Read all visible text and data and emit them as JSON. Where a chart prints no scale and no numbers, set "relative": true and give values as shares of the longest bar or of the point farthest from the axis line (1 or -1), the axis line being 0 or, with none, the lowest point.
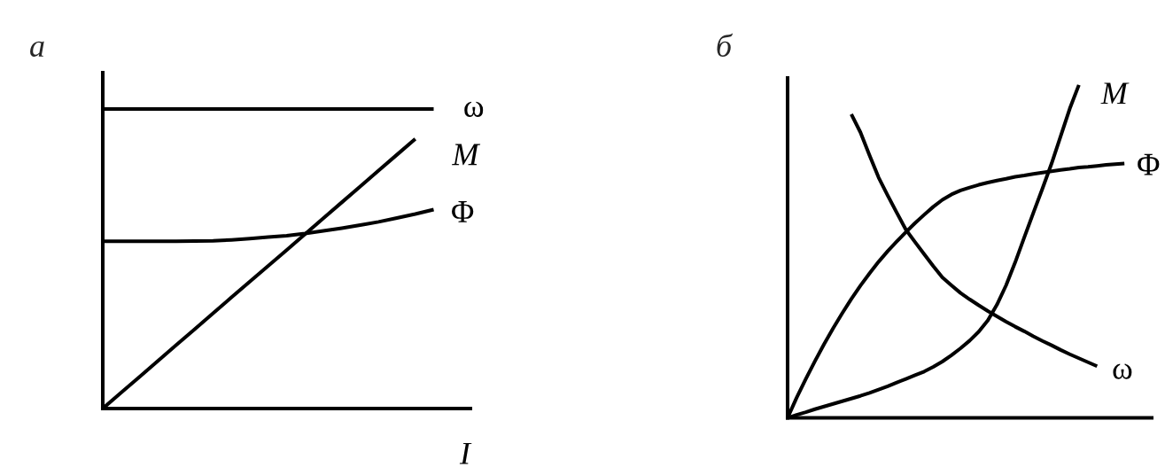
{
  "chart_data": [
    {
      "type": "line",
      "title": "а",
      "xlabel": "I",
      "relative": true,
      "categories": [
        null,
        null,
        null,
        null,
        null,
        null,
        null,
        null,
        null,
        null,
        null,
        null,
        null,
        null,
        null,
        null,
        null,
        null,
        null,
        null,
        null
      ],
      "series": [
        {
          "name": "ω",
          "color": "#000000",
          "values": [
            1,
            1,
            1,
            1,
            1,
            1,
            1,
            1,
            1,
            1,
            1,
            1,
            1,
            1,
            1,
            1,
            1,
            1,
            1,
            null,
            null
          ]
        },
        {
          "name": "M",
          "color": "#000000",
          "values": [
            0,
            0.053,
            0.106,
            0.159,
            0.212,
            0.265,
            0.318,
            0.371,
            0.424,
            0.476,
            0.529,
            0.582,
            0.635,
            0.688,
            0.741,
            0.794,
            0.847,
            0.9,
            null,
            null,
            null
          ]
        },
        {
          "name": "Φ",
          "color": "#000000",
          "values": [
            0.558,
            0.558,
            0.558,
            0.558,
            0.558,
            0.559,
            0.56,
            0.563,
            0.567,
            0.572,
            0.577,
            0.584,
            0.593,
            0.602,
            0.612,
            0.623,
            0.636,
            0.649,
            0.664,
            null,
            null
          ]
        }
      ]
    },
    {
      "type": "line",
      "title": "б",
      "relative": true,
      "categories": [
        null,
        null,
        null,
        null,
        null,
        null,
        null,
        null,
        null,
        null,
        null,
        null,
        null,
        null,
        null,
        null,
        null,
        null,
        null,
        null,
        null,
        null,
        null,
        null,
        null,
        null,
        null,
        null,
        null,
        null,
        null,
        null,
        null,
        null,
        null,
        null,
        null,
        null,
        null,
        null,
        null
      ],
      "series": [
        {
          "name": "ω",
          "color": "#000000",
          "values": [
            null,
            null,
            null,
            null,
            null,
            null,
            null,
            0.912,
            0.858,
            0.789,
            0.722,
            0.668,
            0.616,
            0.565,
            0.528,
            0.492,
            0.456,
            0.422,
            0.398,
            0.375,
            0.356,
            0.338,
            0.321,
            0.305,
            0.289,
            0.274,
            0.26,
            0.245,
            0.231,
            0.218,
            0.204,
            0.191,
            0.179,
            0.167,
            0.155,
            null,
            null,
            null,
            null,
            null,
            null
          ]
        },
        {
          "name": "M",
          "color": "#000000",
          "values": [
            0,
            0.009,
            0.017,
            0.026,
            0.034,
            0.042,
            0.05,
            0.058,
            0.066,
            0.075,
            0.085,
            0.095,
            0.106,
            0.117,
            0.128,
            0.139,
            0.153,
            0.169,
            0.188,
            0.209,
            0.232,
            0.259,
            0.293,
            0.34,
            0.398,
            0.467,
            0.542,
            0.616,
            0.689,
            0.764,
            0.846,
            0.929,
            1.0,
            null,
            null,
            null,
            null,
            null,
            null,
            null,
            null
          ]
        },
        {
          "name": "Φ",
          "color": "#000000",
          "values": [
            0,
            0.061,
            0.117,
            0.17,
            0.221,
            0.269,
            0.314,
            0.357,
            0.397,
            0.434,
            0.469,
            0.501,
            0.53,
            0.558,
            0.585,
            0.61,
            0.634,
            0.655,
            0.671,
            0.683,
            0.692,
            0.7,
            0.707,
            0.713,
            0.718,
            0.724,
            0.728,
            0.733,
            0.737,
            0.741,
            0.745,
            0.748,
            0.752,
            0.754,
            0.757,
            0.76,
            0.762,
            0.764,
            null,
            null,
            null
          ]
        }
      ]
    }
  ]
}
